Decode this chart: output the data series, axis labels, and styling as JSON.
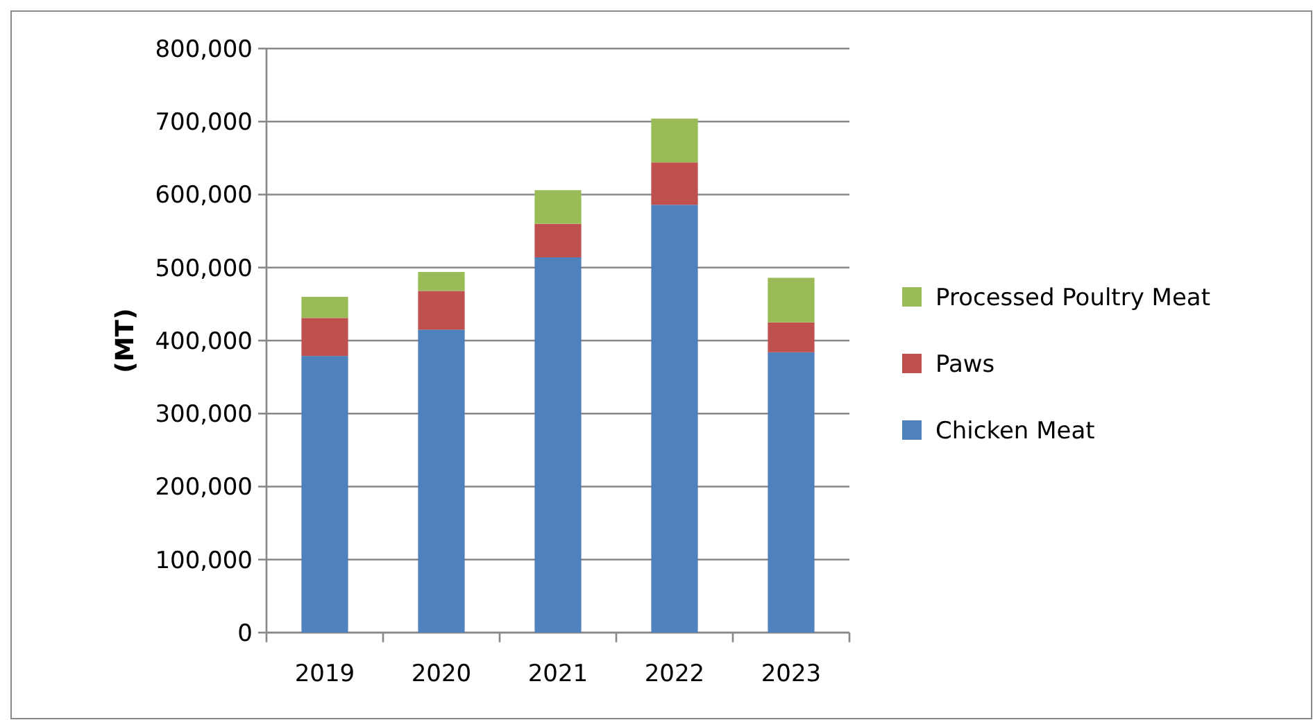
{
  "chart_data": {
    "type": "bar",
    "stacked": true,
    "ylabel": "(MT)",
    "categories": [
      "2019",
      "2020",
      "2021",
      "2022",
      "2023"
    ],
    "series": [
      {
        "name": "Chicken Meat",
        "color": "#4f81bd",
        "values": [
          379000,
          415000,
          514000,
          586000,
          384000
        ]
      },
      {
        "name": "Paws",
        "color": "#c0504d",
        "values": [
          52000,
          53000,
          46000,
          58000,
          41000
        ]
      },
      {
        "name": "Processed Poultry Meat",
        "color": "#9bbb59",
        "values": [
          29000,
          26000,
          46000,
          60000,
          61000
        ]
      }
    ],
    "ylim": [
      0,
      800000
    ],
    "yticks": [
      {
        "value": 0,
        "label": "0"
      },
      {
        "value": 100000,
        "label": "100,000"
      },
      {
        "value": 200000,
        "label": "200,000"
      },
      {
        "value": 300000,
        "label": "300,000"
      },
      {
        "value": 400000,
        "label": "400,000"
      },
      {
        "value": 500000,
        "label": "500,000"
      },
      {
        "value": 600000,
        "label": "600,000"
      },
      {
        "value": 700000,
        "label": "700,000"
      },
      {
        "value": 800000,
        "label": "800,000"
      }
    ],
    "grid": "y",
    "legend": "right"
  }
}
